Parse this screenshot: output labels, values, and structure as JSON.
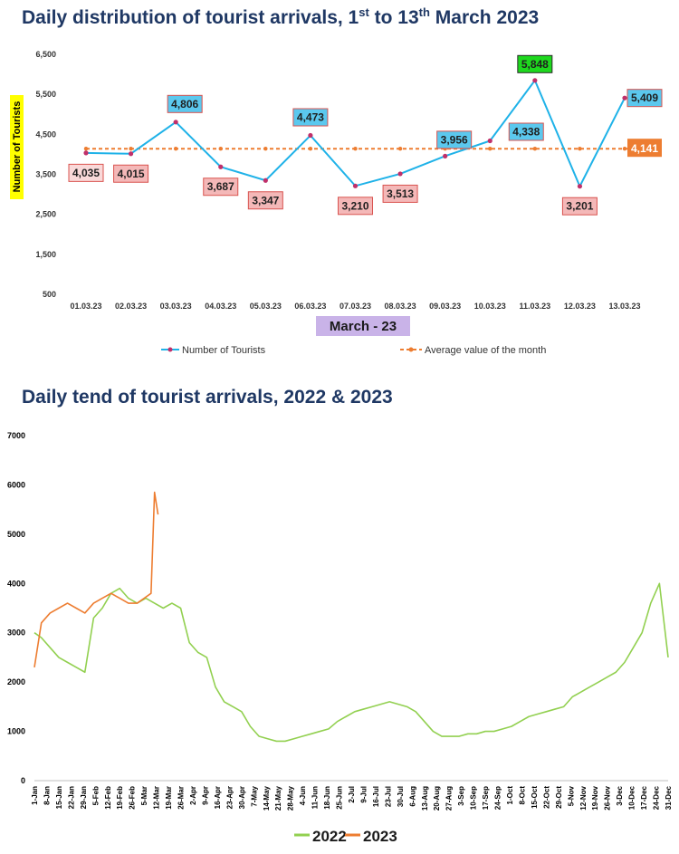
{
  "chart_data": [
    {
      "type": "line",
      "title": "Daily distribution of tourist arrivals, 1st to 13th March 2023",
      "title_main": "Daily distribution of tourist arrivals, 1",
      "title_sup1": "st",
      "title_mid": " to 13",
      "title_sup2": "th",
      "title_end": " March 2023",
      "xlabel": "March - 23",
      "ylabel": "Number of Tourists",
      "ylim": [
        500,
        6500
      ],
      "yticks": [
        500,
        1500,
        2500,
        3500,
        4500,
        5500,
        6500
      ],
      "ytick_labels": [
        "500",
        "1,500",
        "2,500",
        "3,500",
        "4,500",
        "5,500",
        "6,500"
      ],
      "categories": [
        "01.03.23",
        "02.03.23",
        "03.03.23",
        "04.03.23",
        "05.03.23",
        "06.03.23",
        "07.03.23",
        "08.03.23",
        "09.03.23",
        "10.03.23",
        "11.03.23",
        "12.03.23",
        "13.03.23"
      ],
      "series": [
        {
          "name": "Number of Tourists",
          "color": "#1fb2e8",
          "values": [
            4035,
            4015,
            4806,
            3687,
            3347,
            4473,
            3210,
            3513,
            3956,
            4338,
            5848,
            3201,
            5409
          ],
          "labels": [
            "4,035",
            "4,015",
            "4,806",
            "3,687",
            "3,347",
            "4,473",
            "3,210",
            "3,513",
            "3,956",
            "4,338",
            "5,848",
            "3,201",
            "5,409"
          ]
        },
        {
          "name": "Average value of the month",
          "color": "#ed7d31",
          "value": 4141,
          "label": "4,141"
        }
      ],
      "legend_placement": "bottom",
      "grid": false
    },
    {
      "type": "line",
      "title": "Daily tend of tourist arrivals, 2022 & 2023",
      "ylim": [
        0,
        7000
      ],
      "yticks": [
        0,
        1000,
        2000,
        3000,
        4000,
        5000,
        6000,
        7000
      ],
      "ytick_labels": [
        "0",
        "1000",
        "2000",
        "3000",
        "4000",
        "5000",
        "6000",
        "7000"
      ],
      "x_tick_labels": [
        "1-Jan",
        "8-Jan",
        "15-Jan",
        "22-Jan",
        "29-Jan",
        "5-Feb",
        "12-Feb",
        "19-Feb",
        "26-Feb",
        "5-Mar",
        "12-Mar",
        "19-Mar",
        "26-Mar",
        "2-Apr",
        "9-Apr",
        "16-Apr",
        "23-Apr",
        "30-Apr",
        "7-May",
        "14-May",
        "21-May",
        "28-May",
        "4-Jun",
        "11-Jun",
        "18-Jun",
        "25-Jun",
        "2-Jul",
        "9-Jul",
        "16-Jul",
        "23-Jul",
        "30-Jul",
        "6-Aug",
        "13-Aug",
        "20-Aug",
        "27-Aug",
        "3-Sep",
        "10-Sep",
        "17-Sep",
        "24-Sep",
        "1-Oct",
        "8-Oct",
        "15-Oct",
        "22-Oct",
        "29-Oct",
        "5-Nov",
        "12-Nov",
        "19-Nov",
        "26-Nov",
        "3-Dec",
        "10-Dec",
        "17-Dec",
        "24-Dec",
        "31-Dec"
      ],
      "x_unit": "day of year",
      "series": [
        {
          "name": "2022",
          "color": "#92d050",
          "x": [
            1,
            5,
            10,
            15,
            20,
            25,
            30,
            35,
            40,
            45,
            50,
            55,
            60,
            65,
            70,
            75,
            80,
            85,
            90,
            95,
            100,
            105,
            110,
            115,
            120,
            125,
            130,
            135,
            140,
            145,
            150,
            155,
            160,
            165,
            170,
            175,
            180,
            185,
            190,
            195,
            200,
            205,
            210,
            215,
            220,
            225,
            230,
            235,
            240,
            245,
            250,
            255,
            260,
            265,
            270,
            275,
            280,
            285,
            290,
            295,
            300,
            305,
            310,
            315,
            320,
            325,
            330,
            335,
            340,
            345,
            350,
            355,
            360,
            365
          ],
          "y": [
            3000,
            2900,
            2700,
            2500,
            2400,
            2300,
            2200,
            3300,
            3500,
            3800,
            3900,
            3700,
            3600,
            3700,
            3600,
            3500,
            3600,
            3500,
            2800,
            2600,
            2500,
            1900,
            1600,
            1500,
            1400,
            1100,
            900,
            850,
            800,
            800,
            850,
            900,
            950,
            1000,
            1050,
            1200,
            1300,
            1400,
            1450,
            1500,
            1550,
            1600,
            1550,
            1500,
            1400,
            1200,
            1000,
            900,
            900,
            900,
            950,
            950,
            1000,
            1000,
            1050,
            1100,
            1200,
            1300,
            1350,
            1400,
            1450,
            1500,
            1700,
            1800,
            1900,
            2000,
            2100,
            2200,
            2400,
            2700,
            3000,
            3600,
            4000,
            2500
          ]
        },
        {
          "name": "2023",
          "color": "#ed7d31",
          "x": [
            1,
            5,
            10,
            15,
            20,
            25,
            30,
            35,
            40,
            45,
            50,
            55,
            60,
            64,
            68,
            70,
            72
          ],
          "y": [
            2300,
            3200,
            3400,
            3500,
            3600,
            3500,
            3400,
            3600,
            3700,
            3800,
            3700,
            3600,
            3600,
            3700,
            3800,
            5850,
            5400
          ]
        }
      ],
      "legend_placement": "bottom",
      "grid": false
    }
  ]
}
